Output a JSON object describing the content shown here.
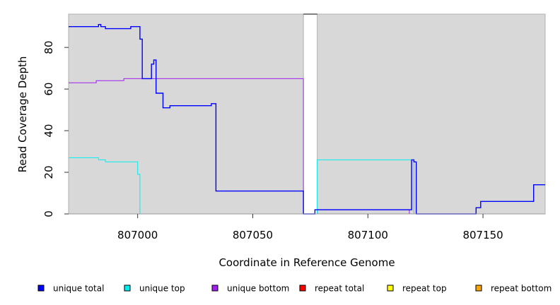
{
  "chart_data": {
    "type": "line",
    "title": "",
    "xlabel": "Coordinate in Reference Genome",
    "ylabel": "Read Coverage Depth",
    "xlim": [
      806970,
      807177
    ],
    "ylim": [
      0,
      96
    ],
    "x_ticks": [
      807000,
      807050,
      807100,
      807150
    ],
    "y_ticks": [
      0,
      20,
      40,
      60,
      80
    ],
    "grid": false,
    "background": "#d8d8d8",
    "gap": [
      807072,
      807078
    ],
    "legend_position": "bottom",
    "series": [
      {
        "name": "unique total",
        "color": "#0000ff",
        "x": [
          806970,
          806983,
          806984,
          806986,
          806993,
          806997,
          807001,
          807002,
          807006,
          807007,
          807008,
          807011,
          807014,
          807032,
          807034,
          807072,
          807075,
          807077,
          807119,
          807120,
          807121,
          807147,
          807149,
          807172,
          807177
        ],
        "y": [
          90,
          91,
          90,
          89,
          89,
          90,
          84,
          65,
          72,
          74,
          58,
          51,
          52,
          53,
          11,
          0,
          0,
          2,
          26,
          25,
          0,
          3,
          6,
          14,
          14
        ]
      },
      {
        "name": "unique top",
        "color": "#00eeee",
        "x": [
          806970,
          806983,
          806986,
          806999,
          807000,
          807001,
          807072,
          807075,
          807077,
          807078,
          807120,
          807177
        ],
        "y": [
          27,
          26,
          25,
          25,
          19,
          0,
          0,
          0,
          0,
          26,
          0,
          0
        ]
      },
      {
        "name": "unique bottom",
        "color": "#a020f0",
        "x": [
          806970,
          806982,
          806994,
          806998,
          807072,
          807075,
          807077,
          807078,
          807118,
          807177
        ],
        "y": [
          63,
          64,
          65,
          65,
          0,
          0,
          0,
          2,
          0,
          0
        ]
      },
      {
        "name": "repeat total",
        "color": "#ff0000",
        "x": [
          806970,
          807177
        ],
        "y": [
          0,
          0
        ]
      },
      {
        "name": "repeat top",
        "color": "#ffff00",
        "x": [
          806970,
          807177
        ],
        "y": [
          0,
          0
        ]
      },
      {
        "name": "repeat bottom",
        "color": "#ffa500",
        "x": [
          806970,
          807177
        ],
        "y": [
          0,
          0
        ]
      }
    ]
  }
}
